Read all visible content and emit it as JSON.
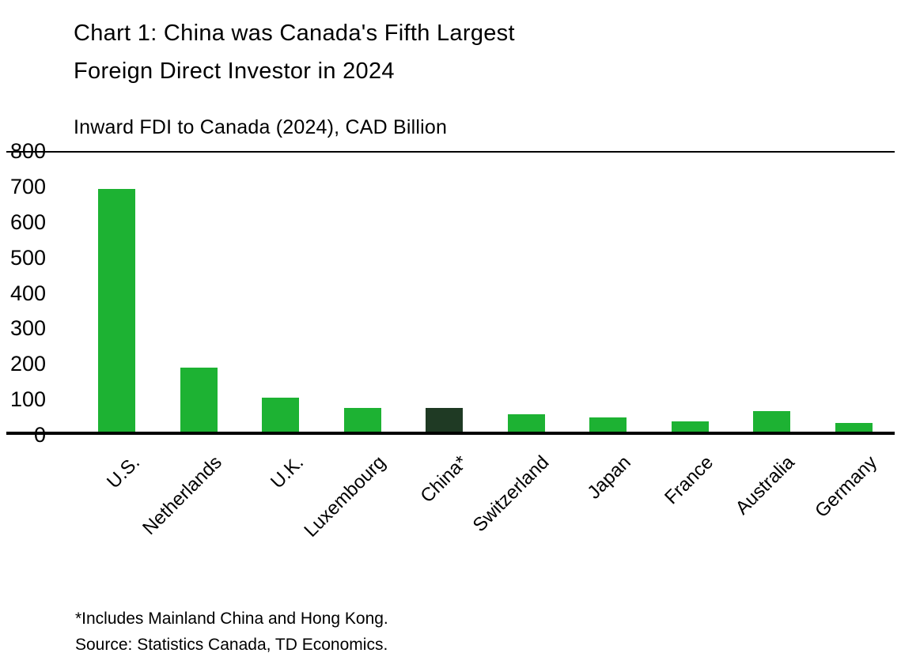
{
  "chart": {
    "title_lines": [
      "Chart 1: China was Canada's Fifth Largest",
      "Foreign Direct Investor in 2024"
    ],
    "subtitle": "Inward FDI to Canada (2024), CAD Billion",
    "footnote": "*Includes Mainland China and Hong Kong.",
    "source": "Source:  Statistics Canada, TD Economics."
  },
  "chart_data": {
    "type": "bar",
    "title": "Chart 1: China was Canada's Fifth Largest Foreign Direct Investor in 2024",
    "subtitle": "Inward FDI to Canada (2024), CAD Billion",
    "categories": [
      "U.S.",
      "Netherlands",
      "U.K.",
      "Luxembourg",
      "China*",
      "Switzerland",
      "Japan",
      "France",
      "Australia",
      "Germany"
    ],
    "values": [
      685,
      180,
      95,
      68,
      67,
      48,
      40,
      30,
      57,
      24
    ],
    "xlabel": "",
    "ylabel": "CAD Billion",
    "ylim": [
      0,
      800
    ],
    "yticks": [
      0,
      100,
      200,
      300,
      400,
      500,
      600,
      700,
      800
    ],
    "bar_color": "#1db233",
    "highlight_color": "#1f3a24",
    "highlight_index": 4,
    "grid": false,
    "legend": false
  }
}
